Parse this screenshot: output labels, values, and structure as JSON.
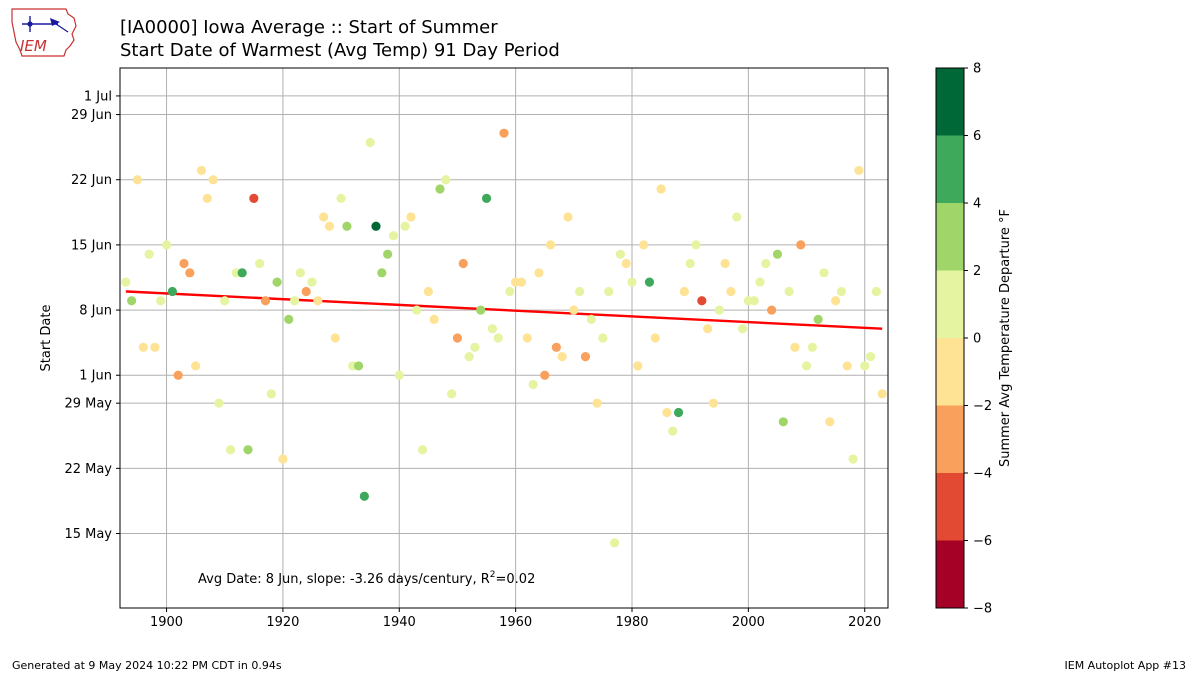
{
  "header": {
    "title_line1": "[IA0000] Iowa Average :: Start of Summer",
    "title_line2": "Start Date of Warmest (Avg Temp) 91 Day Period"
  },
  "logo": {
    "text": "IEM"
  },
  "footer": {
    "left": "Generated at 9 May 2024 10:22 PM CDT in 0.94s",
    "right": "IEM Autoplot App #13"
  },
  "chart_data": {
    "type": "scatter",
    "title": "[IA0000] Iowa Average :: Start of Summer",
    "subtitle": "Start Date of Warmest (Avg Temp) 91 Day Period",
    "xlabel": "",
    "ylabel": "Start Date",
    "xlim": [
      1892,
      2024
    ],
    "ylim": [
      "2024-05-07",
      "2024-07-04"
    ],
    "grid": true,
    "x_ticks": [
      1900,
      1920,
      1940,
      1960,
      1980,
      2000,
      2020
    ],
    "y_ticks": [
      {
        "date": "2024-05-15",
        "label": "15 May"
      },
      {
        "date": "2024-05-22",
        "label": "22 May"
      },
      {
        "date": "2024-05-29",
        "label": "29 May"
      },
      {
        "date": "2024-06-01",
        "label": "1 Jun"
      },
      {
        "date": "2024-06-08",
        "label": "8 Jun"
      },
      {
        "date": "2024-06-15",
        "label": "15 Jun"
      },
      {
        "date": "2024-06-22",
        "label": "22 Jun"
      },
      {
        "date": "2024-06-29",
        "label": "29 Jun"
      },
      {
        "date": "2024-07-01",
        "label": "1 Jul"
      }
    ],
    "annotation": "Avg Date: 8 Jun, slope: -3.26 days/century, R²=0.02",
    "trend_line": {
      "color": "#ff0000",
      "points": [
        {
          "year": 1893,
          "date": "2024-06-10"
        },
        {
          "year": 2023,
          "date": "2024-06-06"
        }
      ]
    },
    "colorbar": {
      "label": "Summer Avg Temperature Departure °F",
      "bounds": [
        -8,
        -6,
        -4,
        -2,
        0,
        2,
        4,
        6,
        8
      ],
      "colors": [
        "#a50026",
        "#e34a33",
        "#f9a05c",
        "#fee395",
        "#e4f4a0",
        "#a0d669",
        "#3ea95a",
        "#006837"
      ]
    },
    "points": [
      {
        "year": 1893,
        "date": "2024-06-11",
        "color": "#e4f4a0"
      },
      {
        "year": 1894,
        "date": "2024-06-09",
        "color": "#a0d669"
      },
      {
        "year": 1895,
        "date": "2024-06-22",
        "color": "#fee395"
      },
      {
        "year": 1896,
        "date": "2024-06-04",
        "color": "#fee395"
      },
      {
        "year": 1897,
        "date": "2024-06-14",
        "color": "#e4f4a0"
      },
      {
        "year": 1898,
        "date": "2024-06-04",
        "color": "#fee395"
      },
      {
        "year": 1899,
        "date": "2024-06-09",
        "color": "#e4f4a0"
      },
      {
        "year": 1900,
        "date": "2024-06-15",
        "color": "#e4f4a0"
      },
      {
        "year": 1901,
        "date": "2024-06-10",
        "color": "#3ea95a"
      },
      {
        "year": 1902,
        "date": "2024-06-01",
        "color": "#f9a05c"
      },
      {
        "year": 1903,
        "date": "2024-06-13",
        "color": "#f9a05c"
      },
      {
        "year": 1904,
        "date": "2024-06-12",
        "color": "#f9a05c"
      },
      {
        "year": 1905,
        "date": "2024-06-02",
        "color": "#fee395"
      },
      {
        "year": 1906,
        "date": "2024-06-23",
        "color": "#fee395"
      },
      {
        "year": 1907,
        "date": "2024-06-20",
        "color": "#fee395"
      },
      {
        "year": 1908,
        "date": "2024-06-22",
        "color": "#fee395"
      },
      {
        "year": 1909,
        "date": "2024-05-29",
        "color": "#e4f4a0"
      },
      {
        "year": 1910,
        "date": "2024-06-09",
        "color": "#e4f4a0"
      },
      {
        "year": 1911,
        "date": "2024-05-24",
        "color": "#e4f4a0"
      },
      {
        "year": 1912,
        "date": "2024-06-12",
        "color": "#e4f4a0"
      },
      {
        "year": 1913,
        "date": "2024-06-12",
        "color": "#3ea95a"
      },
      {
        "year": 1914,
        "date": "2024-05-24",
        "color": "#a0d669"
      },
      {
        "year": 1915,
        "date": "2024-06-20",
        "color": "#e34a33"
      },
      {
        "year": 1916,
        "date": "2024-06-13",
        "color": "#e4f4a0"
      },
      {
        "year": 1917,
        "date": "2024-06-09",
        "color": "#f9a05c"
      },
      {
        "year": 1918,
        "date": "2024-05-30",
        "color": "#e4f4a0"
      },
      {
        "year": 1919,
        "date": "2024-06-11",
        "color": "#a0d669"
      },
      {
        "year": 1920,
        "date": "2024-05-23",
        "color": "#fee395"
      },
      {
        "year": 1921,
        "date": "2024-06-07",
        "color": "#a0d669"
      },
      {
        "year": 1922,
        "date": "2024-06-09",
        "color": "#e4f4a0"
      },
      {
        "year": 1923,
        "date": "2024-06-12",
        "color": "#e4f4a0"
      },
      {
        "year": 1924,
        "date": "2024-06-10",
        "color": "#f9a05c"
      },
      {
        "year": 1925,
        "date": "2024-06-11",
        "color": "#e4f4a0"
      },
      {
        "year": 1926,
        "date": "2024-06-09",
        "color": "#fee395"
      },
      {
        "year": 1927,
        "date": "2024-06-18",
        "color": "#fee395"
      },
      {
        "year": 1928,
        "date": "2024-06-17",
        "color": "#fee395"
      },
      {
        "year": 1929,
        "date": "2024-06-05",
        "color": "#fee395"
      },
      {
        "year": 1930,
        "date": "2024-06-20",
        "color": "#e4f4a0"
      },
      {
        "year": 1931,
        "date": "2024-06-17",
        "color": "#a0d669"
      },
      {
        "year": 1932,
        "date": "2024-06-02",
        "color": "#e4f4a0"
      },
      {
        "year": 1933,
        "date": "2024-06-02",
        "color": "#a0d669"
      },
      {
        "year": 1934,
        "date": "2024-05-19",
        "color": "#3ea95a"
      },
      {
        "year": 1935,
        "date": "2024-06-26",
        "color": "#e4f4a0"
      },
      {
        "year": 1936,
        "date": "2024-06-17",
        "color": "#006837"
      },
      {
        "year": 1937,
        "date": "2024-06-12",
        "color": "#a0d669"
      },
      {
        "year": 1938,
        "date": "2024-06-14",
        "color": "#a0d669"
      },
      {
        "year": 1939,
        "date": "2024-06-16",
        "color": "#e4f4a0"
      },
      {
        "year": 1940,
        "date": "2024-06-01",
        "color": "#e4f4a0"
      },
      {
        "year": 1941,
        "date": "2024-06-17",
        "color": "#e4f4a0"
      },
      {
        "year": 1942,
        "date": "2024-06-18",
        "color": "#fee395"
      },
      {
        "year": 1943,
        "date": "2024-06-08",
        "color": "#e4f4a0"
      },
      {
        "year": 1944,
        "date": "2024-05-24",
        "color": "#e4f4a0"
      },
      {
        "year": 1945,
        "date": "2024-06-10",
        "color": "#fee395"
      },
      {
        "year": 1946,
        "date": "2024-06-07",
        "color": "#fee395"
      },
      {
        "year": 1947,
        "date": "2024-06-21",
        "color": "#a0d669"
      },
      {
        "year": 1948,
        "date": "2024-06-22",
        "color": "#e4f4a0"
      },
      {
        "year": 1949,
        "date": "2024-05-30",
        "color": "#e4f4a0"
      },
      {
        "year": 1950,
        "date": "2024-06-05",
        "color": "#f9a05c"
      },
      {
        "year": 1951,
        "date": "2024-06-13",
        "color": "#f9a05c"
      },
      {
        "year": 1952,
        "date": "2024-06-03",
        "color": "#e4f4a0"
      },
      {
        "year": 1953,
        "date": "2024-06-04",
        "color": "#e4f4a0"
      },
      {
        "year": 1954,
        "date": "2024-06-08",
        "color": "#a0d669"
      },
      {
        "year": 1955,
        "date": "2024-06-20",
        "color": "#3ea95a"
      },
      {
        "year": 1956,
        "date": "2024-06-06",
        "color": "#e4f4a0"
      },
      {
        "year": 1957,
        "date": "2024-06-05",
        "color": "#e4f4a0"
      },
      {
        "year": 1958,
        "date": "2024-06-27",
        "color": "#f9a05c"
      },
      {
        "year": 1959,
        "date": "2024-06-10",
        "color": "#e4f4a0"
      },
      {
        "year": 1960,
        "date": "2024-06-11",
        "color": "#fee395"
      },
      {
        "year": 1961,
        "date": "2024-06-11",
        "color": "#fee395"
      },
      {
        "year": 1962,
        "date": "2024-06-05",
        "color": "#fee395"
      },
      {
        "year": 1963,
        "date": "2024-05-31",
        "color": "#e4f4a0"
      },
      {
        "year": 1964,
        "date": "2024-06-12",
        "color": "#fee395"
      },
      {
        "year": 1965,
        "date": "2024-06-01",
        "color": "#f9a05c"
      },
      {
        "year": 1966,
        "date": "2024-06-15",
        "color": "#fee395"
      },
      {
        "year": 1967,
        "date": "2024-06-04",
        "color": "#f9a05c"
      },
      {
        "year": 1968,
        "date": "2024-06-03",
        "color": "#fee395"
      },
      {
        "year": 1969,
        "date": "2024-06-18",
        "color": "#fee395"
      },
      {
        "year": 1970,
        "date": "2024-06-08",
        "color": "#fee395"
      },
      {
        "year": 1971,
        "date": "2024-06-10",
        "color": "#e4f4a0"
      },
      {
        "year": 1972,
        "date": "2024-06-03",
        "color": "#f9a05c"
      },
      {
        "year": 1973,
        "date": "2024-06-07",
        "color": "#e4f4a0"
      },
      {
        "year": 1974,
        "date": "2024-05-29",
        "color": "#fee395"
      },
      {
        "year": 1975,
        "date": "2024-06-05",
        "color": "#e4f4a0"
      },
      {
        "year": 1976,
        "date": "2024-06-10",
        "color": "#e4f4a0"
      },
      {
        "year": 1977,
        "date": "2024-05-14",
        "color": "#e4f4a0"
      },
      {
        "year": 1978,
        "date": "2024-06-14",
        "color": "#e4f4a0"
      },
      {
        "year": 1979,
        "date": "2024-06-13",
        "color": "#fee395"
      },
      {
        "year": 1980,
        "date": "2024-06-11",
        "color": "#e4f4a0"
      },
      {
        "year": 1981,
        "date": "2024-06-02",
        "color": "#fee395"
      },
      {
        "year": 1982,
        "date": "2024-06-15",
        "color": "#fee395"
      },
      {
        "year": 1983,
        "date": "2024-06-11",
        "color": "#3ea95a"
      },
      {
        "year": 1984,
        "date": "2024-06-05",
        "color": "#fee395"
      },
      {
        "year": 1985,
        "date": "2024-06-21",
        "color": "#fee395"
      },
      {
        "year": 1986,
        "date": "2024-05-28",
        "color": "#fee395"
      },
      {
        "year": 1987,
        "date": "2024-05-26",
        "color": "#e4f4a0"
      },
      {
        "year": 1988,
        "date": "2024-05-28",
        "color": "#3ea95a"
      },
      {
        "year": 1989,
        "date": "2024-06-10",
        "color": "#fee395"
      },
      {
        "year": 1990,
        "date": "2024-06-13",
        "color": "#e4f4a0"
      },
      {
        "year": 1991,
        "date": "2024-06-15",
        "color": "#e4f4a0"
      },
      {
        "year": 1992,
        "date": "2024-06-09",
        "color": "#e34a33"
      },
      {
        "year": 1993,
        "date": "2024-06-06",
        "color": "#fee395"
      },
      {
        "year": 1994,
        "date": "2024-05-29",
        "color": "#fee395"
      },
      {
        "year": 1995,
        "date": "2024-06-08",
        "color": "#e4f4a0"
      },
      {
        "year": 1996,
        "date": "2024-06-13",
        "color": "#fee395"
      },
      {
        "year": 1997,
        "date": "2024-06-10",
        "color": "#fee395"
      },
      {
        "year": 1998,
        "date": "2024-06-18",
        "color": "#e4f4a0"
      },
      {
        "year": 1999,
        "date": "2024-06-06",
        "color": "#e4f4a0"
      },
      {
        "year": 2000,
        "date": "2024-06-09",
        "color": "#e4f4a0"
      },
      {
        "year": 2001,
        "date": "2024-06-09",
        "color": "#e4f4a0"
      },
      {
        "year": 2002,
        "date": "2024-06-11",
        "color": "#e4f4a0"
      },
      {
        "year": 2003,
        "date": "2024-06-13",
        "color": "#e4f4a0"
      },
      {
        "year": 2004,
        "date": "2024-06-08",
        "color": "#f9a05c"
      },
      {
        "year": 2005,
        "date": "2024-06-14",
        "color": "#a0d669"
      },
      {
        "year": 2006,
        "date": "2024-05-27",
        "color": "#a0d669"
      },
      {
        "year": 2007,
        "date": "2024-06-10",
        "color": "#e4f4a0"
      },
      {
        "year": 2008,
        "date": "2024-06-04",
        "color": "#fee395"
      },
      {
        "year": 2009,
        "date": "2024-06-15",
        "color": "#f9a05c"
      },
      {
        "year": 2010,
        "date": "2024-06-02",
        "color": "#e4f4a0"
      },
      {
        "year": 2011,
        "date": "2024-06-04",
        "color": "#e4f4a0"
      },
      {
        "year": 2012,
        "date": "2024-06-07",
        "color": "#a0d669"
      },
      {
        "year": 2013,
        "date": "2024-06-12",
        "color": "#e4f4a0"
      },
      {
        "year": 2014,
        "date": "2024-05-27",
        "color": "#fee395"
      },
      {
        "year": 2015,
        "date": "2024-06-09",
        "color": "#fee395"
      },
      {
        "year": 2016,
        "date": "2024-06-10",
        "color": "#e4f4a0"
      },
      {
        "year": 2017,
        "date": "2024-06-02",
        "color": "#fee395"
      },
      {
        "year": 2018,
        "date": "2024-05-23",
        "color": "#e4f4a0"
      },
      {
        "year": 2019,
        "date": "2024-06-23",
        "color": "#fee395"
      },
      {
        "year": 2020,
        "date": "2024-06-02",
        "color": "#e4f4a0"
      },
      {
        "year": 2021,
        "date": "2024-06-03",
        "color": "#e4f4a0"
      },
      {
        "year": 2022,
        "date": "2024-06-10",
        "color": "#e4f4a0"
      },
      {
        "year": 2023,
        "date": "2024-05-30",
        "color": "#fee395"
      }
    ]
  }
}
